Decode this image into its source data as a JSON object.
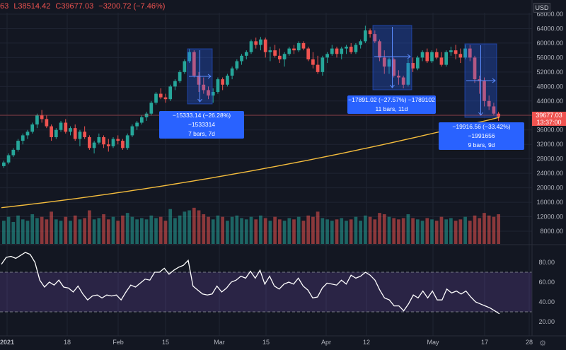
{
  "header": {
    "open": "63",
    "low": "L38514.42",
    "close": "C39677.03",
    "change": "−3200.72 (−7.46%)"
  },
  "currency": "USD",
  "settings_icon": "gear-icon",
  "last_price": {
    "value": "39677.03",
    "countdown": "13:37:00"
  },
  "colors": {
    "up": "#26a69a",
    "down": "#ef5350",
    "ma": "#f5bd3d",
    "rsi": "#ffffff",
    "rsi_band": "#7e57c2",
    "measure": "#2962ff"
  },
  "measurements": [
    {
      "line1": "−15333.14 (−26.28%) −1533314",
      "line2": "7 bars, 7d"
    },
    {
      "line1": "−17891.02 (−27.57%) −1789102",
      "line2": "11 bars, 11d"
    },
    {
      "line1": "−19916.56 (−33.42%) −1991656",
      "line2": "9 bars, 9d"
    }
  ],
  "chart_data": {
    "type": "candlestick",
    "price_axis": {
      "ticks": [
        "68000.00",
        "64000.00",
        "60000.00",
        "56000.00",
        "52000.00",
        "48000.00",
        "44000.00",
        "40000.00",
        "36000.00",
        "32000.00",
        "28000.00",
        "24000.00",
        "20000.00",
        "16000.00",
        "12000.00",
        "8000.00"
      ],
      "range": [
        6000,
        70000
      ]
    },
    "x_ticks": [
      "2021",
      "18",
      "Feb",
      "15",
      "Mar",
      "15",
      "Apr",
      "12",
      "May",
      "17",
      "28"
    ],
    "moving_average": {
      "start": 14500,
      "end": 39500
    },
    "ohlc": [
      [
        26000,
        27500,
        25500,
        27000
      ],
      [
        27000,
        29500,
        26500,
        29000
      ],
      [
        29000,
        31000,
        28500,
        30500
      ],
      [
        30500,
        33500,
        30000,
        33000
      ],
      [
        33000,
        35000,
        32000,
        34500
      ],
      [
        34500,
        36000,
        33500,
        35500
      ],
      [
        35500,
        38000,
        35000,
        37500
      ],
      [
        37500,
        40500,
        36500,
        40000
      ],
      [
        40000,
        41500,
        38000,
        39000
      ],
      [
        39000,
        40000,
        36500,
        37000
      ],
      [
        37000,
        37500,
        33000,
        34000
      ],
      [
        34000,
        36500,
        33500,
        36000
      ],
      [
        36000,
        38500,
        35500,
        38000
      ],
      [
        38000,
        39000,
        35000,
        35500
      ],
      [
        35500,
        37000,
        34500,
        36500
      ],
      [
        36500,
        37500,
        33000,
        33500
      ],
      [
        33500,
        36000,
        31500,
        35500
      ],
      [
        35500,
        37000,
        33500,
        34000
      ],
      [
        34000,
        34500,
        30500,
        31000
      ],
      [
        31000,
        33000,
        29500,
        32500
      ],
      [
        32500,
        35000,
        32000,
        34000
      ],
      [
        34000,
        34500,
        31000,
        32000
      ],
      [
        32000,
        33500,
        30000,
        31500
      ],
      [
        31500,
        34000,
        31000,
        33500
      ],
      [
        33500,
        34500,
        32000,
        33000
      ],
      [
        33000,
        33500,
        30500,
        31000
      ],
      [
        31000,
        35000,
        30500,
        34500
      ],
      [
        34500,
        37500,
        34000,
        37000
      ],
      [
        37000,
        38500,
        36000,
        38000
      ],
      [
        38000,
        40000,
        37500,
        39500
      ],
      [
        39500,
        41000,
        38500,
        40500
      ],
      [
        40500,
        44000,
        40000,
        43500
      ],
      [
        43500,
        46500,
        43000,
        46000
      ],
      [
        46000,
        47500,
        44500,
        45000
      ],
      [
        45000,
        46000,
        43500,
        44500
      ],
      [
        44500,
        48500,
        44000,
        48000
      ],
      [
        48000,
        50000,
        47000,
        49500
      ],
      [
        49500,
        52500,
        49000,
        52000
      ],
      [
        52000,
        55500,
        51500,
        55000
      ],
      [
        55000,
        58300,
        54500,
        57500
      ],
      [
        57500,
        58000,
        50500,
        51000
      ],
      [
        51000,
        52000,
        46500,
        48500
      ],
      [
        48500,
        50500,
        46000,
        47000
      ],
      [
        47000,
        48000,
        44500,
        45500
      ],
      [
        45500,
        47500,
        43500,
        46500
      ],
      [
        46500,
        50500,
        46000,
        50000
      ],
      [
        50000,
        50500,
        47000,
        48500
      ],
      [
        48500,
        51500,
        48000,
        51000
      ],
      [
        51000,
        53500,
        50000,
        53000
      ],
      [
        53000,
        55500,
        52500,
        55000
      ],
      [
        55000,
        57000,
        54000,
        56500
      ],
      [
        56500,
        58000,
        55500,
        57500
      ],
      [
        57500,
        61000,
        57000,
        60500
      ],
      [
        60500,
        61500,
        58500,
        59500
      ],
      [
        59500,
        61700,
        58000,
        61000
      ],
      [
        61000,
        61500,
        56000,
        57500
      ],
      [
        57500,
        59000,
        55000,
        58000
      ],
      [
        58000,
        59500,
        56000,
        56500
      ],
      [
        56500,
        58500,
        54500,
        55500
      ],
      [
        55500,
        57500,
        53500,
        57000
      ],
      [
        57000,
        59000,
        56500,
        58500
      ],
      [
        58500,
        59500,
        57000,
        58000
      ],
      [
        58000,
        60500,
        57500,
        60000
      ],
      [
        60000,
        60500,
        58000,
        58500
      ],
      [
        58500,
        59000,
        55000,
        55500
      ],
      [
        55500,
        57500,
        53000,
        54000
      ],
      [
        54000,
        56500,
        51500,
        52000
      ],
      [
        52000,
        56500,
        51000,
        56000
      ],
      [
        56000,
        57500,
        54500,
        57000
      ],
      [
        57000,
        59500,
        56500,
        58500
      ],
      [
        58500,
        59000,
        56000,
        57000
      ],
      [
        57000,
        59000,
        55500,
        58500
      ],
      [
        58500,
        59500,
        57000,
        59000
      ],
      [
        59000,
        60000,
        57000,
        57500
      ],
      [
        57500,
        60000,
        57000,
        59500
      ],
      [
        59500,
        61000,
        58500,
        60500
      ],
      [
        60500,
        64800,
        60000,
        63500
      ],
      [
        63500,
        64000,
        61500,
        62500
      ],
      [
        62500,
        63500,
        60000,
        60500
      ],
      [
        60500,
        61000,
        55000,
        56000
      ],
      [
        56000,
        58000,
        51500,
        53500
      ],
      [
        53500,
        56000,
        51500,
        55500
      ],
      [
        55500,
        56000,
        50500,
        51000
      ],
      [
        51000,
        52500,
        48500,
        50500
      ],
      [
        50500,
        51000,
        47500,
        48500
      ],
      [
        48500,
        55500,
        48000,
        54500
      ],
      [
        54500,
        56000,
        52000,
        53000
      ],
      [
        53000,
        56500,
        52500,
        56000
      ],
      [
        56000,
        58000,
        55000,
        57500
      ],
      [
        57500,
        58500,
        54500,
        55000
      ],
      [
        55000,
        58000,
        54500,
        57500
      ],
      [
        57500,
        58500,
        55500,
        56000
      ],
      [
        56000,
        57500,
        53500,
        54000
      ],
      [
        54000,
        58000,
        53500,
        57500
      ],
      [
        57500,
        59000,
        56500,
        58000
      ],
      [
        58000,
        59500,
        55500,
        57000
      ],
      [
        57000,
        58500,
        54500,
        56000
      ],
      [
        56000,
        59500,
        55500,
        58500
      ],
      [
        58500,
        59500,
        55000,
        56000
      ],
      [
        56000,
        56500,
        49000,
        50000
      ],
      [
        50000,
        51000,
        46000,
        49500
      ],
      [
        49500,
        50500,
        42500,
        44000
      ],
      [
        44000,
        45500,
        41500,
        42500
      ],
      [
        42500,
        43500,
        40000,
        40500
      ],
      [
        40500,
        41000,
        38500,
        39677
      ]
    ],
    "volume_axis": {
      "range": [
        0,
        26000
      ]
    },
    "volume": [
      9000,
      10500,
      8500,
      11000,
      9500,
      9000,
      11500,
      10000,
      10500,
      9500,
      12500,
      9500,
      9000,
      10500,
      9000,
      11000,
      9500,
      10000,
      13000,
      9500,
      10000,
      11500,
      9500,
      10500,
      9000,
      11000,
      12000,
      10500,
      9500,
      10000,
      9500,
      11000,
      10000,
      10500,
      9000,
      13500,
      10000,
      11000,
      12500,
      13000,
      14000,
      13000,
      11500,
      10500,
      9500,
      11000,
      10500,
      9000,
      10500,
      11000,
      10000,
      9500,
      10500,
      9500,
      11000,
      10000,
      9000,
      10500,
      9500,
      9000,
      10000,
      9500,
      10500,
      9000,
      11000,
      10500,
      12500,
      10000,
      9500,
      9000,
      9500,
      10000,
      9000,
      9500,
      10500,
      9000,
      11000,
      10500,
      9500,
      12000,
      11500,
      10500,
      10000,
      9500,
      10000,
      11500,
      10000,
      9500,
      9000,
      10000,
      9500,
      9000,
      10500,
      9500,
      10000,
      9000,
      9500,
      10500,
      9000,
      11000,
      10000,
      12000,
      11000,
      10500,
      11500
    ],
    "rsi_axis": {
      "ticks": [
        "80.00",
        "60.00",
        "40.00",
        "20.00"
      ],
      "range": [
        20,
        95
      ],
      "bands": [
        30,
        70
      ]
    },
    "rsi": [
      78,
      85,
      86,
      84,
      87,
      90,
      88,
      80,
      62,
      55,
      60,
      57,
      62,
      55,
      54,
      50,
      56,
      48,
      42,
      46,
      47,
      44,
      47,
      46,
      47,
      42,
      50,
      57,
      55,
      59,
      63,
      62,
      70,
      70,
      74,
      68,
      72,
      75,
      77,
      82,
      56,
      52,
      48,
      47,
      48,
      56,
      50,
      54,
      60,
      62,
      66,
      64,
      71,
      64,
      72,
      58,
      66,
      56,
      53,
      58,
      60,
      58,
      64,
      56,
      52,
      44,
      45,
      54,
      59,
      58,
      57,
      62,
      58,
      67,
      64,
      66,
      70,
      67,
      62,
      52,
      44,
      42,
      36,
      36,
      31,
      38,
      47,
      44,
      51,
      44,
      51,
      42,
      42,
      53,
      49,
      51,
      48,
      51,
      45,
      40,
      38,
      36,
      34,
      31,
      28
    ]
  }
}
